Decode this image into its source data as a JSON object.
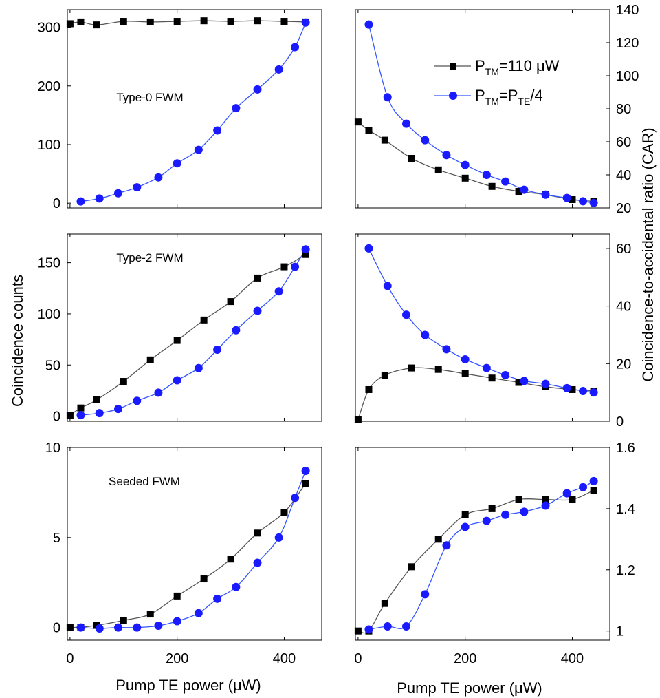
{
  "figure": {
    "ylabel_left": "Coincidence counts",
    "ylabel_right": "Coincidence-to-accidental ratio (CAR)",
    "xlabel": "Pump TE power (μW)",
    "legend": {
      "placement": "top-right",
      "entries": [
        {
          "series": "TM110",
          "parts": [
            {
              "t": "P"
            },
            {
              "t": "TM",
              "sub": true
            },
            {
              "t": "=110 μW"
            }
          ]
        },
        {
          "series": "TE4",
          "parts": [
            {
              "t": "P"
            },
            {
              "t": "TM",
              "sub": true
            },
            {
              "t": "=P"
            },
            {
              "t": "TE",
              "sub": true
            },
            {
              "t": "/4"
            }
          ]
        }
      ]
    },
    "colors": {
      "TM110": "#000000",
      "TE4": "#1a1aff",
      "TM110_line": "#555555",
      "TE4_line": "#3355ff"
    }
  },
  "chart_data": [
    {
      "type": "scatter",
      "panel": "row1-left",
      "annotation": "Type-0 FWM",
      "xlim": [
        -5,
        470
      ],
      "ylim": [
        -8,
        330
      ],
      "xticks": [
        0,
        200,
        400
      ],
      "xticklabels": [
        "0",
        "200",
        "400"
      ],
      "yticks": [
        0,
        100,
        200,
        300
      ],
      "yticklabels": [
        "0",
        "100",
        "200",
        "300"
      ],
      "series": [
        {
          "key": "TM110",
          "x": [
            0,
            20,
            50,
            100,
            150,
            200,
            250,
            300,
            350,
            400,
            440
          ],
          "y": [
            306,
            309,
            304,
            310,
            309,
            310,
            311,
            310,
            311,
            310,
            309
          ]
        },
        {
          "key": "TE4",
          "x": [
            20,
            55,
            90,
            125,
            165,
            200,
            240,
            275,
            310,
            350,
            390,
            420,
            440
          ],
          "y": [
            3,
            8,
            17,
            27,
            44,
            68,
            91,
            124,
            162,
            194,
            228,
            266,
            308
          ]
        }
      ]
    },
    {
      "type": "scatter",
      "panel": "row1-right",
      "xlim": [
        -5,
        470
      ],
      "ylim": [
        20,
        140
      ],
      "xticks": [
        0,
        200,
        400
      ],
      "xticklabels": [
        "0",
        "200",
        "400"
      ],
      "yticks": [
        20,
        40,
        60,
        80,
        100,
        120,
        140
      ],
      "yticklabels": [
        "20",
        "40",
        "60",
        "80",
        "100",
        "120",
        "140"
      ],
      "series": [
        {
          "key": "TM110",
          "x": [
            0,
            20,
            50,
            100,
            150,
            200,
            250,
            300,
            350,
            400,
            440
          ],
          "y": [
            72,
            67,
            61,
            50,
            43,
            38,
            33,
            30,
            28,
            25,
            24
          ]
        },
        {
          "key": "TE4",
          "x": [
            20,
            55,
            90,
            125,
            165,
            200,
            240,
            275,
            310,
            350,
            390,
            420,
            440
          ],
          "y": [
            131,
            87,
            71,
            61,
            52,
            46,
            40,
            36,
            31,
            28,
            26,
            24,
            23
          ]
        }
      ]
    },
    {
      "type": "scatter",
      "panel": "row2-left",
      "annotation": "Type-2 FWM",
      "xlim": [
        -5,
        470
      ],
      "ylim": [
        -5,
        178
      ],
      "xticks": [
        0,
        200,
        400
      ],
      "xticklabels": [
        "0",
        "200",
        "400"
      ],
      "yticks": [
        0,
        50,
        100,
        150
      ],
      "yticklabels": [
        "0",
        "50",
        "100",
        "150"
      ],
      "series": [
        {
          "key": "TM110",
          "x": [
            0,
            20,
            50,
            100,
            150,
            200,
            250,
            300,
            350,
            400,
            440
          ],
          "y": [
            1,
            8,
            16,
            34,
            55,
            74,
            94,
            112,
            135,
            146,
            158
          ]
        },
        {
          "key": "TE4",
          "x": [
            20,
            55,
            90,
            125,
            165,
            200,
            240,
            275,
            310,
            350,
            390,
            420,
            440
          ],
          "y": [
            1,
            3,
            7,
            15,
            23,
            35,
            47,
            65,
            84,
            103,
            122,
            146,
            163
          ]
        }
      ]
    },
    {
      "type": "scatter",
      "panel": "row2-right",
      "xlim": [
        -5,
        470
      ],
      "ylim": [
        0,
        65
      ],
      "xticks": [
        0,
        200,
        400
      ],
      "xticklabels": [
        "0",
        "200",
        "400"
      ],
      "yticks": [
        0,
        20,
        40,
        60
      ],
      "yticklabels": [
        "0",
        "20",
        "40",
        "60"
      ],
      "series": [
        {
          "key": "TM110",
          "x": [
            0,
            20,
            50,
            100,
            150,
            200,
            250,
            300,
            350,
            400,
            440
          ],
          "y": [
            0.5,
            11,
            16,
            18.5,
            18,
            16.5,
            15,
            13.5,
            12,
            11,
            10.5
          ]
        },
        {
          "key": "TE4",
          "x": [
            20,
            55,
            90,
            125,
            165,
            200,
            240,
            275,
            310,
            350,
            390,
            420,
            440
          ],
          "y": [
            60,
            47,
            37,
            30,
            25,
            21.5,
            18.5,
            16,
            14,
            13,
            11.5,
            10.5,
            10
          ]
        }
      ]
    },
    {
      "type": "scatter",
      "panel": "row3-left",
      "annotation": "Seeded FWM",
      "xlim": [
        -5,
        470
      ],
      "ylim": [
        -0.7,
        10
      ],
      "xticks": [
        0,
        200,
        400
      ],
      "xticklabels": [
        "0",
        "200",
        "400"
      ],
      "yticks": [
        0,
        5,
        10
      ],
      "yticklabels": [
        "0",
        "5",
        "10"
      ],
      "series": [
        {
          "key": "TM110",
          "x": [
            0,
            20,
            50,
            100,
            150,
            200,
            250,
            300,
            350,
            400,
            440
          ],
          "y": [
            0,
            0.02,
            0.12,
            0.4,
            0.75,
            1.75,
            2.7,
            3.8,
            5.25,
            6.4,
            8.0
          ]
        },
        {
          "key": "TE4",
          "x": [
            20,
            55,
            90,
            125,
            165,
            200,
            240,
            275,
            310,
            350,
            390,
            420,
            440
          ],
          "y": [
            0,
            -0.05,
            0,
            0,
            0.1,
            0.35,
            0.8,
            1.6,
            2.25,
            3.6,
            5.0,
            7.2,
            8.7
          ]
        }
      ]
    },
    {
      "type": "scatter",
      "panel": "row3-right",
      "xlim": [
        -5,
        470
      ],
      "ylim": [
        0.97,
        1.6
      ],
      "xticks": [
        0,
        200,
        400
      ],
      "xticklabels": [
        "0",
        "200",
        "400"
      ],
      "yticks": [
        1.0,
        1.2,
        1.4,
        1.6
      ],
      "yticklabels": [
        "1",
        "1.2",
        "1.4",
        "1.6"
      ],
      "series": [
        {
          "key": "TM110",
          "x": [
            0,
            20,
            50,
            100,
            150,
            200,
            250,
            300,
            350,
            400,
            440
          ],
          "y": [
            1.0,
            1.0,
            1.09,
            1.21,
            1.3,
            1.38,
            1.4,
            1.43,
            1.43,
            1.43,
            1.46
          ]
        },
        {
          "key": "TE4",
          "x": [
            20,
            55,
            90,
            125,
            165,
            200,
            240,
            275,
            310,
            350,
            390,
            420,
            440
          ],
          "y": [
            1.005,
            1.015,
            1.015,
            1.12,
            1.28,
            1.34,
            1.36,
            1.38,
            1.39,
            1.41,
            1.45,
            1.47,
            1.49
          ]
        }
      ]
    }
  ]
}
